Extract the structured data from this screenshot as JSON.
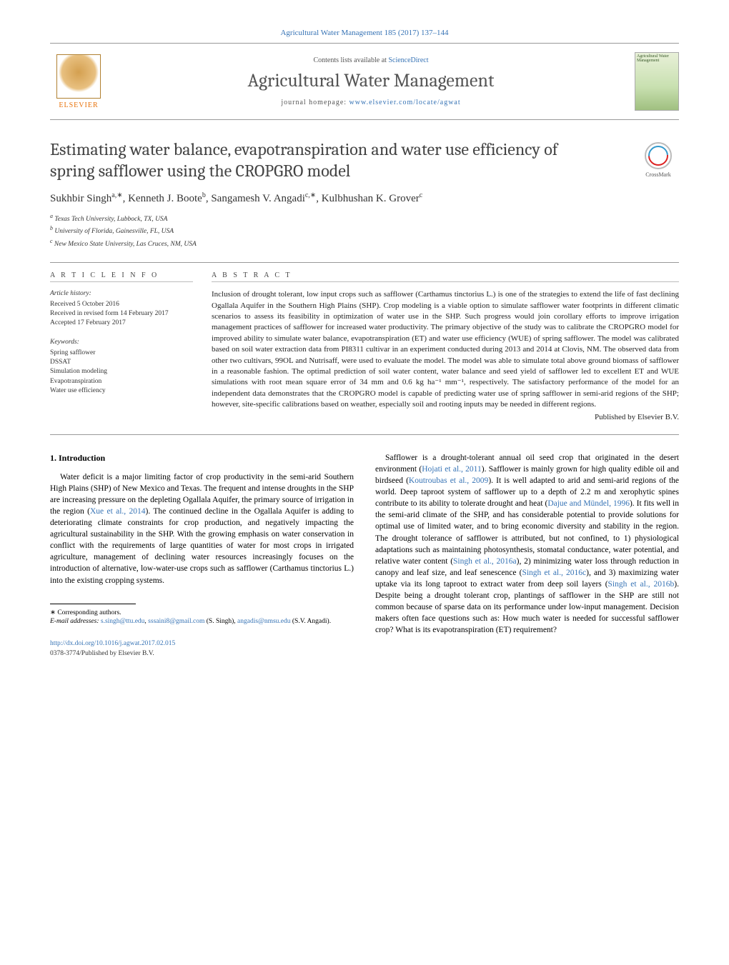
{
  "header": {
    "citation": "Agricultural Water Management 185 (2017) 137–144",
    "contents_prefix": "Contents lists available at ",
    "contents_link": "ScienceDirect",
    "journal": "Agricultural Water Management",
    "homepage_prefix": "journal homepage: ",
    "homepage_link": "www.elsevier.com/locate/agwat",
    "publisher": "ELSEVIER",
    "cover_text": "Agricultural Water Management"
  },
  "title": "Estimating water balance, evapotranspiration and water use efficiency of spring safflower using the CROPGRO model",
  "crossmark": "CrossMark",
  "authors_html": "Sukhbir Singh<sup>a,∗</sup>, Kenneth J. Boote<sup>b</sup>, Sangamesh V. Angadi<sup>c,∗</sup>, Kulbhushan K. Grover<sup>c</sup>",
  "affiliations": [
    "a Texas Tech University, Lubbock, TX, USA",
    "b University of Florida, Gainesville, FL, USA",
    "c New Mexico State University, Las Cruces, NM, USA"
  ],
  "article_info": {
    "heading": "A R T I C L E   I N F O",
    "history_label": "Article history:",
    "history": [
      "Received 5 October 2016",
      "Received in revised form 14 February 2017",
      "Accepted 17 February 2017"
    ],
    "keywords_label": "Keywords:",
    "keywords": [
      "Spring safflower",
      "DSSAT",
      "Simulation modeling",
      "Evapotranspiration",
      "Water use efficiency"
    ]
  },
  "abstract": {
    "heading": "A B S T R A C T",
    "text": "Inclusion of drought tolerant, low input crops such as safflower (Carthamus tinctorius L.) is one of the strategies to extend the life of fast declining Ogallala Aquifer in the Southern High Plains (SHP). Crop modeling is a viable option to simulate safflower water footprints in different climatic scenarios to assess its feasibility in optimization of water use in the SHP. Such progress would join corollary efforts to improve irrigation management practices of safflower for increased water productivity. The primary objective of the study was to calibrate the CROPGRO model for improved ability to simulate water balance, evapotranspiration (ET) and water use efficiency (WUE) of spring safflower. The model was calibrated based on soil water extraction data from PI8311 cultivar in an experiment conducted during 2013 and 2014 at Clovis, NM. The observed data from other two cultivars, 99OL and Nutrisaff, were used to evaluate the model. The model was able to simulate total above ground biomass of safflower in a reasonable fashion. The optimal prediction of soil water content, water balance and seed yield of safflower led to excellent ET and WUE simulations with root mean square error of 34 mm and 0.6 kg ha⁻¹ mm⁻¹, respectively. The satisfactory performance of the model for an independent data demonstrates that the CROPGRO model is capable of predicting water use of spring safflower in semi-arid regions of the SHP; however, site-specific calibrations based on weather, especially soil and rooting inputs may be needed in different regions.",
    "published_by": "Published by Elsevier B.V."
  },
  "body": {
    "section_heading": "1. Introduction",
    "col1": "Water deficit is a major limiting factor of crop productivity in the semi-arid Southern High Plains (SHP) of New Mexico and Texas. The frequent and intense droughts in the SHP are increasing pressure on the depleting Ogallala Aquifer, the primary source of irrigation in the region (Xue et al., 2014). The continued decline in the Ogallala Aquifer is adding to deteriorating climate constraints for crop production, and negatively impacting the agricultural sustainability in the SHP. With the growing emphasis on water conservation in conflict with the requirements of large quantities of water for most crops in irrigated agriculture, management of declining water resources increasingly focuses on the introduction of alternative, low-water-use crops such as safflower (Carthamus tinctorius L.) into the existing cropping systems.",
    "col2": "Safflower is a drought-tolerant annual oil seed crop that originated in the desert environment (Hojati et al., 2011). Safflower is mainly grown for high quality edible oil and birdseed (Koutroubas et al., 2009). It is well adapted to arid and semi-arid regions of the world. Deep taproot system of safflower up to a depth of 2.2 m and xerophytic spines contribute to its ability to tolerate drought and heat (Dajue and Mündel, 1996). It fits well in the semi-arid climate of the SHP, and has considerable potential to provide solutions for optimal use of limited water, and to bring economic diversity and stability in the region. The drought tolerance of safflower is attributed, but not confined, to 1) physiological adaptations such as maintaining photosynthesis, stomatal conductance, water potential, and relative water content (Singh et al., 2016a), 2) minimizing water loss through reduction in canopy and leaf size, and leaf senescence (Singh et al., 2016c), and 3) maximizing water uptake via its long taproot to extract water from deep soil layers (Singh et al., 2016b). Despite being a drought tolerant crop, plantings of safflower in the SHP are still not common because of sparse data on its performance under low-input management. Decision makers often face questions such as: How much water is needed for successful safflower crop? What is its evapotranspiration (ET) requirement?",
    "links_col1": {
      "xue": "Xue et al., 2014"
    },
    "links_col2": {
      "hojati": "Hojati et al., 2011",
      "koutroubas": "Koutroubas et al., 2009",
      "dajue": "Dajue and Mündel, 1996",
      "singh_a": "Singh et al., 2016a",
      "singh_c": "Singh et al., 2016c",
      "singh_b": "Singh et al., 2016b"
    }
  },
  "footnotes": {
    "corresponding": "∗ Corresponding authors.",
    "email_label": "E-mail addresses: ",
    "emails": [
      {
        "addr": "s.singh@ttu.edu",
        "who": ""
      },
      {
        "addr": "sssaini8@gmail.com",
        "who": " (S. Singh),"
      },
      {
        "addr": "angadis@nmsu.edu",
        "who": " (S.V. Angadi)."
      }
    ]
  },
  "footer": {
    "doi": "http://dx.doi.org/10.1016/j.agwat.2017.02.015",
    "issn_line": "0378-3774/Published by Elsevier B.V."
  },
  "colors": {
    "link": "#3673b5",
    "text": "#000000",
    "muted": "#555555",
    "rule": "#999999"
  }
}
